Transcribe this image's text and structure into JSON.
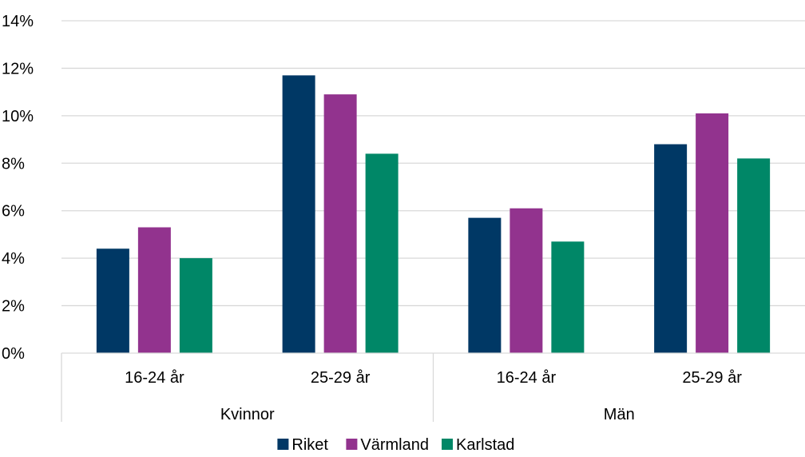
{
  "chart_data": {
    "type": "bar",
    "categories": [
      "16-24 år",
      "25-29 år",
      "16-24 år",
      "25-29 år"
    ],
    "groups": [
      {
        "label": "Kvinnor",
        "categories": [
          "16-24 år",
          "25-29 år"
        ]
      },
      {
        "label": "Män",
        "categories": [
          "16-24 år",
          "25-29 år"
        ]
      }
    ],
    "series": [
      {
        "name": "Riket",
        "color": "#003865",
        "values": [
          4.4,
          11.7,
          5.7,
          8.8
        ]
      },
      {
        "name": "Värmland",
        "color": "#92338E",
        "values": [
          5.3,
          10.9,
          6.1,
          10.1
        ]
      },
      {
        "name": "Karlstad",
        "color": "#008767",
        "values": [
          4.0,
          8.4,
          4.7,
          8.2
        ]
      }
    ],
    "ylim": [
      0,
      14
    ],
    "yticks": [
      0,
      2,
      4,
      6,
      8,
      10,
      12,
      14
    ],
    "ytick_labels": [
      "0%",
      "2%",
      "4%",
      "6%",
      "8%",
      "10%",
      "12%",
      "14%"
    ],
    "y_unit": "%",
    "grid": true,
    "legend_position": "bottom",
    "title": "",
    "xlabel": "",
    "ylabel": ""
  }
}
